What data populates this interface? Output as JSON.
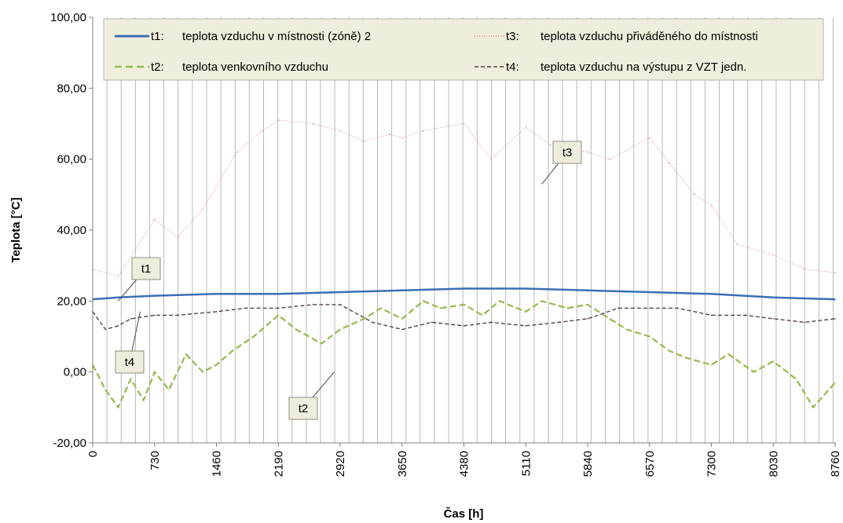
{
  "chart_data": {
    "type": "line",
    "xlabel": "Čas [h]",
    "ylabel": "Teplota [°C]",
    "xlim": [
      0,
      8760
    ],
    "ylim": [
      -20,
      100
    ],
    "x_ticks": [
      "0",
      "730",
      "1460",
      "2190",
      "2920",
      "3650",
      "4380",
      "5110",
      "5840",
      "6570",
      "7300",
      "8030",
      "8760"
    ],
    "y_ticks": [
      "-20,00",
      "0,00",
      "20,00",
      "40,00",
      "60,00",
      "80,00",
      "100,00"
    ],
    "grid": {
      "vertical": true,
      "horizontal": false,
      "vertical_interval_h": 168
    },
    "legend_position": "top",
    "colors": {
      "t1": "#3a6fb5",
      "t2": "#94bb4c",
      "t3": "#d98a86",
      "t4": "#54433f",
      "grid": "#b9b9b9",
      "callout_bg": "#efeedd"
    },
    "series": [
      {
        "key": "t1",
        "legend_code": "t1:",
        "name": "teplota vzduchu v místnosti (zóně) 2",
        "style": "solid",
        "x": [
          0,
          300,
          730,
          1460,
          2190,
          2920,
          3650,
          4380,
          5110,
          5840,
          6570,
          7300,
          8030,
          8760
        ],
        "y": [
          20.5,
          21.0,
          21.5,
          22.0,
          22.0,
          22.5,
          23.0,
          23.5,
          23.5,
          23.0,
          22.5,
          22.0,
          21.0,
          20.5
        ]
      },
      {
        "key": "t2",
        "legend_code": "t2:",
        "name": "teplota venkovního vzduchu",
        "style": "dashed",
        "x": [
          0,
          150,
          300,
          450,
          600,
          730,
          900,
          1100,
          1300,
          1460,
          1650,
          1900,
          2190,
          2400,
          2700,
          2920,
          3200,
          3400,
          3650,
          3900,
          4100,
          4380,
          4600,
          4800,
          5110,
          5300,
          5600,
          5840,
          6100,
          6300,
          6570,
          6800,
          7000,
          7300,
          7500,
          7800,
          8030,
          8300,
          8500,
          8760
        ],
        "y": [
          2,
          -5,
          -10,
          -2,
          -8,
          0,
          -5,
          5,
          0,
          2,
          6,
          10,
          16,
          12,
          8,
          12,
          15,
          18,
          15,
          20,
          18,
          19,
          16,
          20,
          17,
          20,
          18,
          19,
          15,
          12,
          10,
          6,
          4,
          2,
          5,
          0,
          3,
          -2,
          -10,
          -3
        ]
      },
      {
        "key": "t3",
        "legend_code": "t3:",
        "name": "teplota vzduchu přiváděného do místnosti",
        "style": "dotted",
        "x": [
          0,
          300,
          730,
          1000,
          1300,
          1700,
          2000,
          2190,
          2600,
          2920,
          3200,
          3500,
          3650,
          3900,
          4380,
          4700,
          5110,
          5400,
          5840,
          6100,
          6570,
          6800,
          7100,
          7300,
          7600,
          8030,
          8400,
          8760
        ],
        "y": [
          29,
          27,
          43,
          38,
          46,
          62,
          68,
          71,
          70,
          68,
          65,
          67,
          66,
          68,
          70,
          60,
          69,
          64,
          62,
          60,
          66,
          59,
          50,
          47,
          36,
          33,
          29,
          28
        ]
      },
      {
        "key": "t4",
        "legend_code": "t4:",
        "name": "teplota vzduchu na výstupu z VZT jedn.",
        "style": "dash-dot",
        "x": [
          0,
          150,
          300,
          450,
          730,
          1000,
          1460,
          1800,
          2190,
          2600,
          2920,
          3300,
          3650,
          4000,
          4380,
          4700,
          5110,
          5500,
          5840,
          6200,
          6570,
          6900,
          7300,
          7700,
          8030,
          8400,
          8760
        ],
        "y": [
          17,
          12,
          13,
          15,
          16,
          16,
          17,
          18,
          18,
          19,
          19,
          14,
          12,
          14,
          13,
          14,
          13,
          14,
          15,
          18,
          18,
          18,
          16,
          16,
          15,
          14,
          15
        ]
      }
    ],
    "callouts": [
      {
        "label": "t1",
        "target_x": 300,
        "target_y": 20
      },
      {
        "label": "t2",
        "target_x": 2850,
        "target_y": 0
      },
      {
        "label": "t3",
        "target_x": 5300,
        "target_y": 53
      },
      {
        "label": "t4",
        "target_x": 560,
        "target_y": 17
      }
    ]
  }
}
